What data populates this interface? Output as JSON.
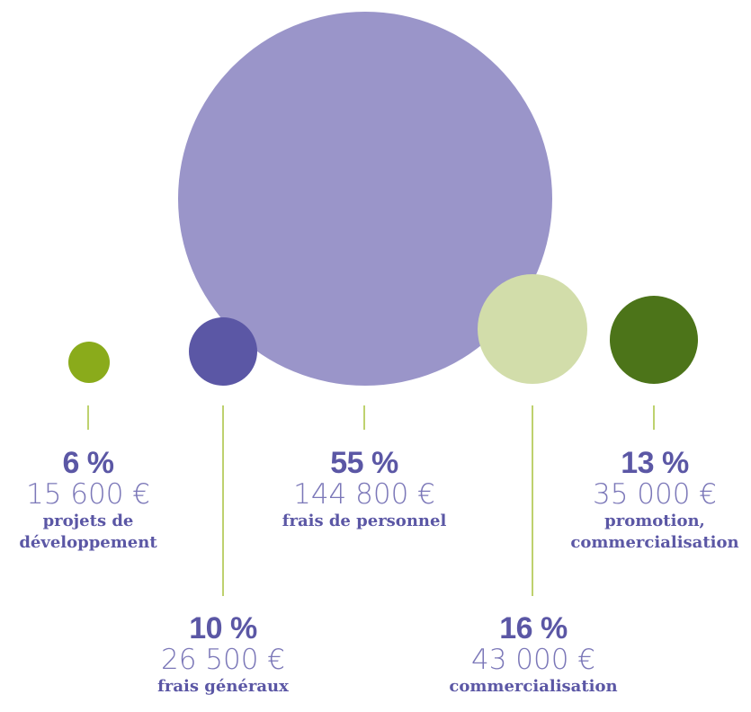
{
  "chart_data": {
    "type": "bubble",
    "series": [
      {
        "id": "dev",
        "percent": "6 %",
        "amount": "15 600 €",
        "label": [
          "projets de",
          "développement"
        ],
        "color": "#8aab1b"
      },
      {
        "id": "gen",
        "percent": "10 %",
        "amount": "26 500 €",
        "label": [
          "frais généraux"
        ],
        "color": "#5b57a5"
      },
      {
        "id": "pers",
        "percent": "55 %",
        "amount": "144 800 €",
        "label": [
          "frais de personnel"
        ],
        "color": "#9a95c9"
      },
      {
        "id": "comm",
        "percent": "16 %",
        "amount": "43 000 €",
        "label": [
          "commercialisation"
        ],
        "color": "#d2ddaa"
      },
      {
        "id": "promo",
        "percent": "13 %",
        "amount": "35 000 €",
        "label": [
          "promotion,",
          "commercialisation"
        ],
        "color": "#4c7419"
      }
    ],
    "values": [
      15600,
      26500,
      144800,
      43000,
      35000
    ],
    "line_color": "#a9c23f"
  }
}
